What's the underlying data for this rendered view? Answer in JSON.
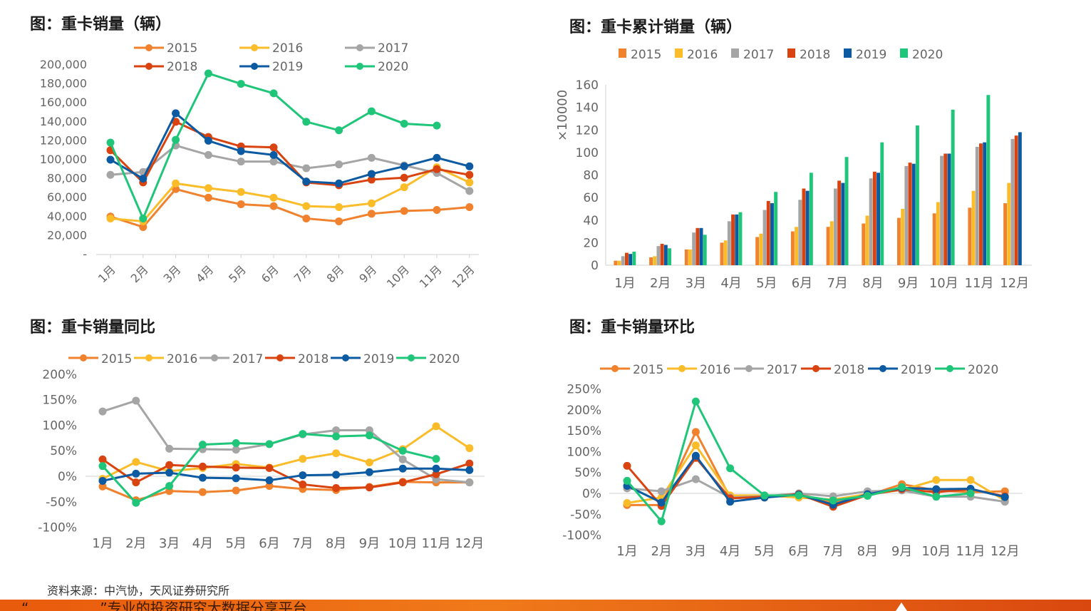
{
  "colors": {
    "2015": "#f0822e",
    "2016": "#fbbc2a",
    "2017": "#a5a5a5",
    "2018": "#d9430f",
    "2019": "#0b5aa2",
    "2020": "#1fc679"
  },
  "source_text": "资料来源：中汽协，天风证券研究所",
  "footer_text": "“　　　　　”专业的投资研究大数据分享平台",
  "chart_data": [
    {
      "id": "c1",
      "type": "line",
      "title": "图：重卡销量（辆）",
      "categories": [
        "1月",
        "2月",
        "3月",
        "4月",
        "5月",
        "6月",
        "7月",
        "8月",
        "9月",
        "10月",
        "11月",
        "12月"
      ],
      "yticks": [
        "-",
        "20,000",
        "40,000",
        "60,000",
        "80,000",
        "100,000",
        "120,000",
        "140,000",
        "160,000",
        "180,000",
        "200,000"
      ],
      "ylim": [
        0,
        200000
      ],
      "legend": "top",
      "grid": false,
      "series": [
        {
          "name": "2015",
          "values": [
            40000,
            29000,
            69000,
            60000,
            53000,
            51000,
            38000,
            35000,
            43000,
            46000,
            47000,
            50000
          ]
        },
        {
          "name": "2016",
          "values": [
            38000,
            35000,
            75000,
            70000,
            66000,
            60000,
            51000,
            50000,
            54000,
            71000,
            92000,
            76000
          ]
        },
        {
          "name": "2017",
          "values": [
            84000,
            87000,
            115000,
            105000,
            98000,
            98000,
            91000,
            95000,
            102000,
            94000,
            86000,
            67000
          ]
        },
        {
          "name": "2018",
          "values": [
            110000,
            76000,
            140000,
            124000,
            114000,
            113000,
            76000,
            73000,
            79000,
            81000,
            90000,
            84000
          ]
        },
        {
          "name": "2019",
          "values": [
            100000,
            80000,
            149000,
            120000,
            109000,
            105000,
            77000,
            75000,
            85000,
            93000,
            102000,
            93000
          ]
        },
        {
          "name": "2020",
          "values": [
            118000,
            38000,
            121000,
            191000,
            180000,
            170000,
            140000,
            131000,
            151000,
            138000,
            136000,
            null
          ]
        }
      ]
    },
    {
      "id": "c2",
      "type": "bar",
      "title": "图：重卡累计销量（辆）",
      "categories": [
        "1月",
        "2月",
        "3月",
        "4月",
        "5月",
        "6月",
        "7月",
        "8月",
        "9月",
        "10月",
        "11月",
        "12月"
      ],
      "yticks": [
        "0",
        "20",
        "40",
        "60",
        "80",
        "100",
        "120",
        "140",
        "160"
      ],
      "ylim": [
        0,
        160
      ],
      "ylabel": "×10000",
      "legend": "top",
      "grid": false,
      "series": [
        {
          "name": "2015",
          "values": [
            4,
            7,
            14,
            20,
            25,
            30,
            34,
            37,
            42,
            46,
            51,
            55
          ]
        },
        {
          "name": "2016",
          "values": [
            4,
            8,
            14,
            22,
            28,
            34,
            39,
            44,
            50,
            56,
            66,
            73
          ]
        },
        {
          "name": "2017",
          "values": [
            8,
            17,
            29,
            39,
            49,
            58,
            68,
            77,
            88,
            97,
            105,
            112
          ]
        },
        {
          "name": "2018",
          "values": [
            11,
            19,
            33,
            45,
            57,
            68,
            75,
            83,
            91,
            99,
            108,
            115
          ]
        },
        {
          "name": "2019",
          "values": [
            10,
            18,
            33,
            45,
            55,
            66,
            73,
            82,
            90,
            99,
            109,
            118
          ]
        },
        {
          "name": "2020",
          "values": [
            12,
            15,
            27,
            47,
            65,
            82,
            96,
            109,
            124,
            138,
            151,
            null
          ]
        }
      ]
    },
    {
      "id": "c3",
      "type": "line",
      "title": "图：重卡销量同比",
      "categories": [
        "1月",
        "2月",
        "3月",
        "4月",
        "5月",
        "6月",
        "7月",
        "8月",
        "9月",
        "10月",
        "11月",
        "12月"
      ],
      "yticks": [
        "-100%",
        "-50%",
        "0%",
        "50%",
        "100%",
        "150%",
        "200%"
      ],
      "ylim": [
        -100,
        200
      ],
      "legend": "top",
      "grid": false,
      "series": [
        {
          "name": "2015",
          "values": [
            -20,
            -47,
            -29,
            -31,
            -28,
            -19,
            -25,
            -27,
            -21,
            -11,
            -12,
            -12
          ]
        },
        {
          "name": "2016",
          "values": [
            -5,
            28,
            10,
            16,
            24,
            17,
            34,
            45,
            27,
            53,
            98,
            55
          ]
        },
        {
          "name": "2017",
          "values": [
            127,
            148,
            54,
            53,
            52,
            63,
            82,
            90,
            90,
            33,
            -6,
            -12
          ]
        },
        {
          "name": "2018",
          "values": [
            33,
            -12,
            22,
            19,
            17,
            16,
            -16,
            -23,
            -22,
            -12,
            4,
            25
          ]
        },
        {
          "name": "2019",
          "values": [
            -9,
            5,
            7,
            -3,
            -4,
            -8,
            2,
            3,
            8,
            15,
            15,
            12
          ]
        },
        {
          "name": "2020",
          "values": [
            20,
            -52,
            -19,
            62,
            65,
            63,
            83,
            78,
            80,
            50,
            34,
            null
          ]
        }
      ]
    },
    {
      "id": "c4",
      "type": "line",
      "title": "图：重卡销量环比",
      "categories": [
        "1月",
        "2月",
        "3月",
        "4月",
        "5月",
        "6月",
        "7月",
        "8月",
        "9月",
        "10月",
        "11月",
        "12月"
      ],
      "yticks": [
        "-100%",
        "-50%",
        "0%",
        "50%",
        "100%",
        "150%",
        "200%",
        "250%"
      ],
      "ylim": [
        -100,
        250
      ],
      "legend": "top",
      "grid": false,
      "series": [
        {
          "name": "2015",
          "values": [
            -28,
            -28,
            147,
            -10,
            -10,
            -2,
            -22,
            -5,
            22,
            7,
            3,
            5
          ]
        },
        {
          "name": "2016",
          "values": [
            -23,
            -10,
            115,
            -5,
            -5,
            -10,
            -15,
            -2,
            8,
            32,
            32,
            -17
          ]
        },
        {
          "name": "2017",
          "values": [
            12,
            5,
            34,
            -10,
            -7,
            0,
            -7,
            5,
            7,
            -8,
            -8,
            -20
          ]
        },
        {
          "name": "2018",
          "values": [
            66,
            -30,
            85,
            -12,
            -8,
            -2,
            -32,
            -4,
            10,
            3,
            10,
            -7
          ]
        },
        {
          "name": "2019",
          "values": [
            18,
            -22,
            90,
            -20,
            -10,
            -3,
            -27,
            -2,
            13,
            10,
            11,
            -9
          ]
        },
        {
          "name": "2020",
          "values": [
            30,
            -67,
            220,
            60,
            -5,
            -5,
            -17,
            -6,
            15,
            -8,
            0,
            null
          ]
        }
      ]
    }
  ]
}
